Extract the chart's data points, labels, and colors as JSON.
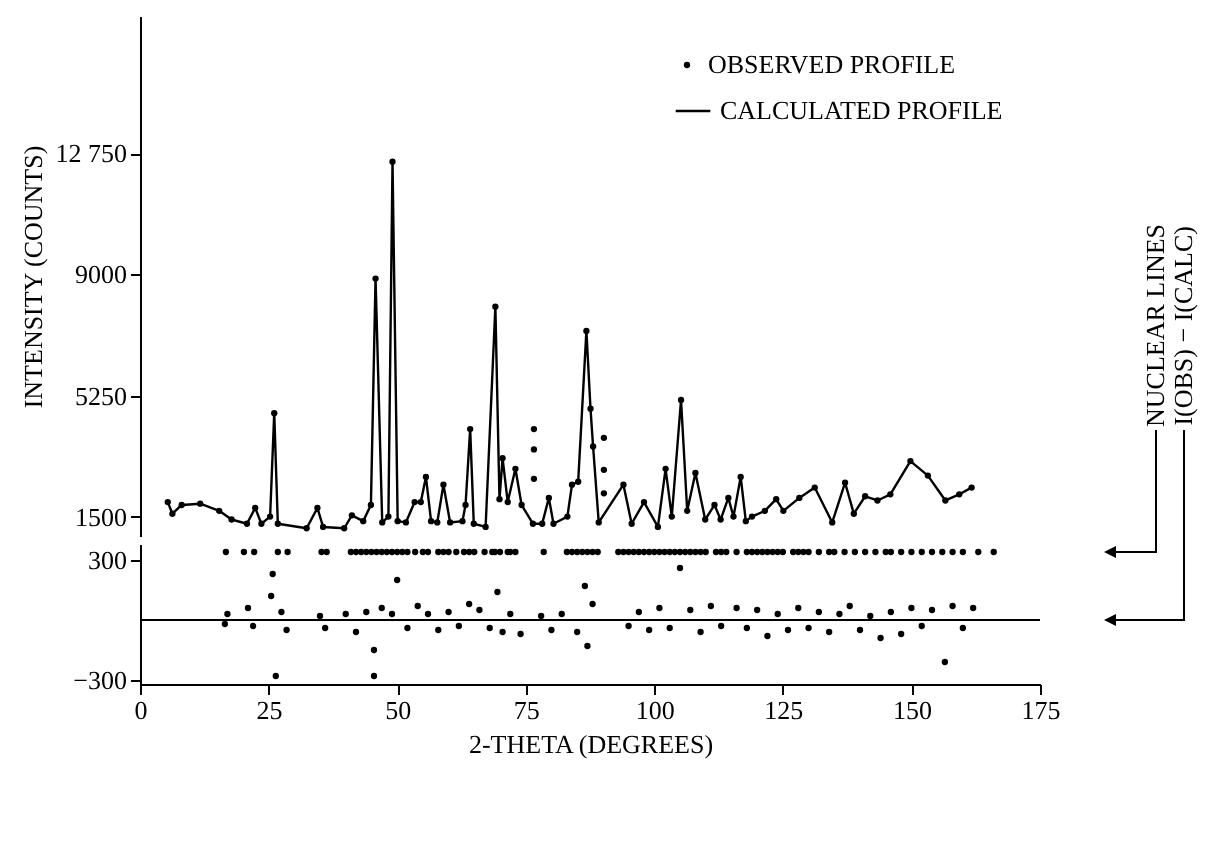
{
  "chart_data": [
    {
      "type": "line",
      "ylabel": "INTENSITY (COUNTS)",
      "xlim": [
        0,
        175
      ],
      "ylim": [
        900,
        17000
      ],
      "yticks": [
        1500,
        5250,
        9000,
        {
          "value": 12750,
          "label": "12 750"
        }
      ],
      "tick_labels": "y",
      "legend": "top right",
      "series": [
        {
          "name": "OBSERVED PROFILE",
          "type": "scatter",
          "marker": "circle",
          "color": "#000000",
          "x": [
            5.4,
            6.3,
            8.1,
            11.7,
            15.4,
            17.8,
            20.8,
            22.4,
            23.6,
            25.3,
            26.1,
            26.8,
            32.4,
            34.5,
            35.6,
            39.7,
            41.2,
            43.4,
            44.9,
            45.8,
            47.1,
            48.3,
            49.1,
            50.1,
            51.7,
            53.4,
            54.6,
            55.6,
            56.6,
            57.8,
            59.0,
            60.3,
            62.7,
            63.3,
            64.2,
            64.9,
            67.2,
            69.1,
            69.9,
            70.5,
            71.5,
            73.0,
            74.2,
            76.4,
            76.6,
            76.6,
            76.6,
            78.2,
            79.5,
            80.4,
            83.1,
            84.0,
            85.2,
            86.8,
            87.6,
            88.1,
            89.2,
            90.2,
            90.2,
            90.2,
            94.0,
            95.6,
            98.0,
            100.7,
            102.2,
            103.4,
            105.2,
            106.4,
            108.0,
            109.9,
            111.7,
            112.9,
            114.4,
            115.4,
            116.8,
            117.8,
            119.0,
            121.5,
            123.7,
            125.1,
            128.2,
            131.2,
            134.6,
            137.1,
            138.8,
            141.0,
            143.4,
            145.9,
            149.8,
            153.2,
            156.6,
            159.3,
            161.7
          ],
          "values": [
            1950,
            1590,
            1860,
            1900,
            1680,
            1410,
            1280,
            1770,
            1280,
            1500,
            4700,
            1280,
            1140,
            1770,
            1180,
            1140,
            1540,
            1360,
            1860,
            8870,
            1320,
            1500,
            12490,
            1360,
            1320,
            1950,
            1950,
            2730,
            1360,
            1320,
            2490,
            1320,
            1360,
            1860,
            4210,
            1280,
            1180,
            8000,
            2040,
            3310,
            1950,
            2980,
            1860,
            1280,
            4210,
            3580,
            2670,
            1280,
            2080,
            1280,
            1500,
            2490,
            2580,
            7250,
            4840,
            3670,
            1320,
            3940,
            2950,
            2220,
            2490,
            1280,
            1950,
            1180,
            2980,
            1500,
            5110,
            1680,
            2850,
            1410,
            1860,
            1410,
            2080,
            1500,
            2730,
            1360,
            1500,
            1680,
            2040,
            1680,
            2080,
            2400,
            1320,
            2550,
            1590,
            2130,
            2000,
            2190,
            3220,
            2770,
            2000,
            2190,
            2400
          ]
        },
        {
          "name": "CALCULATED PROFILE",
          "type": "line",
          "color": "#000000",
          "x": [
            5.4,
            6.3,
            8.1,
            11.7,
            15.4,
            17.8,
            20.8,
            22.4,
            23.6,
            25.3,
            26.1,
            26.8,
            32.4,
            34.5,
            35.6,
            39.7,
            41.2,
            43.4,
            44.9,
            45.8,
            47.1,
            48.3,
            49.1,
            50.1,
            51.7,
            53.4,
            54.6,
            55.6,
            56.6,
            57.8,
            59.0,
            60.3,
            62.7,
            63.3,
            64.2,
            64.9,
            67.2,
            69.1,
            69.9,
            70.5,
            71.5,
            73.0,
            74.2,
            76.4,
            78.2,
            79.5,
            80.4,
            83.1,
            84.0,
            85.2,
            86.8,
            87.6,
            88.1,
            89.2,
            94.0,
            95.6,
            98.0,
            100.7,
            102.2,
            103.4,
            105.2,
            106.4,
            108.0,
            109.9,
            111.7,
            112.9,
            114.4,
            115.4,
            116.8,
            117.8,
            119.0,
            121.5,
            123.7,
            125.1,
            128.2,
            131.2,
            134.6,
            137.1,
            138.8,
            141.0,
            143.4,
            145.9,
            149.8,
            153.2,
            156.6,
            159.3,
            161.7
          ],
          "values": [
            1950,
            1590,
            1860,
            1900,
            1680,
            1410,
            1280,
            1770,
            1280,
            1500,
            4700,
            1280,
            1140,
            1770,
            1180,
            1140,
            1540,
            1360,
            1860,
            8870,
            1320,
            1500,
            12490,
            1360,
            1320,
            1950,
            1950,
            2730,
            1360,
            1320,
            2490,
            1320,
            1360,
            1860,
            4210,
            1280,
            1180,
            8000,
            2040,
            3310,
            1950,
            2980,
            1860,
            1280,
            1280,
            2080,
            1280,
            1500,
            2490,
            2580,
            7250,
            4840,
            3670,
            1320,
            2490,
            1280,
            1950,
            1180,
            2980,
            1500,
            5110,
            1680,
            2850,
            1410,
            1860,
            1410,
            2080,
            1500,
            2730,
            1360,
            1500,
            1680,
            2040,
            1680,
            2080,
            2400,
            1320,
            2550,
            1590,
            2130,
            2000,
            2190,
            3220,
            2770,
            2000,
            2190,
            2400
          ]
        }
      ]
    },
    {
      "type": "scatter",
      "xlabel": "2-THETA (DEGREES)",
      "xlim": [
        0,
        175
      ],
      "xticks": [
        0,
        25,
        50,
        75,
        100,
        125,
        150,
        175
      ],
      "ylim": [
        -320,
        380
      ],
      "yticks": [
        300,
        {
          "value": -300,
          "label": "−300"
        }
      ],
      "marker": "circle",
      "ref_lines": [
        {
          "axis": "y",
          "value": 0
        }
      ],
      "series": [
        {
          "name": "NUCLEAR LINES",
          "color": "#000000",
          "x": [
            16.7,
            20.2,
            22.2,
            26.8,
            28.7,
            35.3,
            36.3,
            41,
            42,
            43,
            44,
            45,
            46,
            47,
            48,
            49,
            50,
            51,
            52,
            53.5,
            55,
            56,
            58,
            59,
            60,
            61.5,
            63,
            64,
            65,
            67,
            68.5,
            69,
            70,
            71.5,
            72,
            73,
            78.5,
            83,
            84,
            85,
            86,
            87,
            88,
            89,
            93,
            94,
            95,
            96,
            97,
            98,
            99,
            100,
            101,
            102,
            103,
            104,
            105,
            106,
            107,
            108,
            109,
            110,
            112,
            113,
            114,
            116,
            118,
            119,
            120,
            121,
            122,
            123,
            124,
            125,
            127,
            128,
            129,
            130,
            132,
            134,
            135,
            137,
            139,
            141,
            143,
            145,
            146,
            148,
            150,
            152,
            154,
            156,
            158,
            160,
            163,
            166
          ],
          "values": [
            340,
            340,
            340,
            340,
            340,
            340,
            340,
            340,
            340,
            340,
            340,
            340,
            340,
            340,
            340,
            340,
            340,
            340,
            340,
            340,
            340,
            340,
            340,
            340,
            340,
            340,
            340,
            340,
            340,
            340,
            340,
            340,
            340,
            340,
            340,
            340,
            340,
            340,
            340,
            340,
            340,
            340,
            340,
            340,
            340,
            340,
            340,
            340,
            340,
            340,
            340,
            340,
            340,
            340,
            340,
            340,
            340,
            340,
            340,
            340,
            340,
            340,
            340,
            340,
            340,
            340,
            340,
            340,
            340,
            340,
            340,
            340,
            340,
            340,
            340,
            340,
            340,
            340,
            340,
            340,
            340,
            340,
            340,
            340,
            340,
            340,
            340,
            340,
            340,
            340,
            340,
            340,
            340,
            340,
            340,
            340
          ]
        },
        {
          "name": "I(OBS) − I(CALC)",
          "color": "#000000",
          "x": [
            16.5,
            17,
            21,
            22,
            25.5,
            25.8,
            26.4,
            27.5,
            28.5,
            35,
            36,
            40,
            42,
            44,
            45.5,
            45.5,
            47,
            49,
            50,
            52,
            54,
            56,
            58,
            60,
            62,
            64,
            66,
            68,
            69.5,
            70.5,
            72,
            74,
            78,
            80,
            82,
            85,
            86.5,
            87,
            88,
            95,
            97,
            99,
            101,
            103,
            105,
            107,
            109,
            111,
            113,
            116,
            118,
            120,
            122,
            124,
            126,
            128,
            130,
            132,
            134,
            136,
            138,
            140,
            142,
            144,
            146,
            148,
            150,
            152,
            154,
            156.5,
            158,
            160,
            162
          ],
          "values": [
            -20,
            30,
            60,
            -30,
            120,
            230,
            -280,
            40,
            -50,
            20,
            -40,
            30,
            -60,
            40,
            -150,
            -280,
            60,
            30,
            200,
            -40,
            70,
            30,
            -50,
            40,
            -30,
            80,
            50,
            -40,
            140,
            -60,
            30,
            -70,
            20,
            -50,
            30,
            -60,
            170,
            -130,
            80,
            -30,
            40,
            -50,
            60,
            -40,
            260,
            50,
            -60,
            70,
            -30,
            60,
            -40,
            50,
            -80,
            30,
            -50,
            60,
            -40,
            40,
            -60,
            30,
            70,
            -50,
            20,
            -90,
            40,
            -70,
            60,
            -30,
            50,
            -210,
            70,
            -40,
            60
          ]
        }
      ]
    }
  ]
}
